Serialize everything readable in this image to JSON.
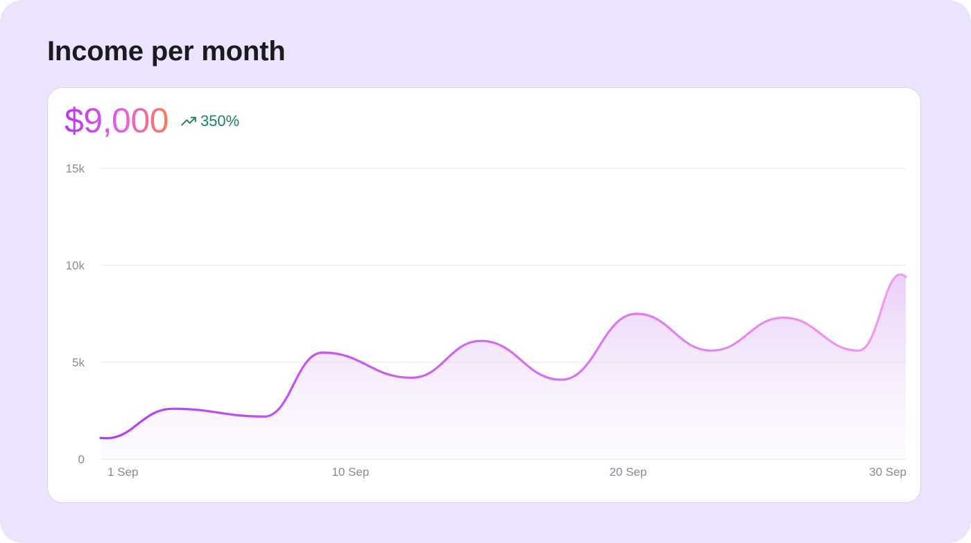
{
  "title": "Income per month",
  "summary": {
    "value": "$9,000",
    "change": "350%",
    "change_icon": "trending-up-icon"
  },
  "colors": {
    "background": "#ece4ff",
    "line_start": "#b43cf0",
    "line_end": "#f09cf0",
    "positive": "#18855a",
    "value_gradient": [
      "#b636f2",
      "#e65ee6",
      "#ff7b4f"
    ]
  },
  "chart_data": {
    "type": "area",
    "title": "",
    "xlabel": "",
    "ylabel": "",
    "x_ticks": [
      {
        "day": 1,
        "label": "1 Sep"
      },
      {
        "day": 10,
        "label": "10 Sep"
      },
      {
        "day": 20,
        "label": "20 Sep"
      },
      {
        "day": 30,
        "label": "30 Sep"
      }
    ],
    "y_ticks": [
      {
        "value": 0,
        "label": "0"
      },
      {
        "value": 5000,
        "label": "5k"
      },
      {
        "value": 10000,
        "label": "10k"
      },
      {
        "value": 15000,
        "label": "15k"
      }
    ],
    "xlim": [
      1,
      30
    ],
    "ylim": [
      0,
      15000
    ],
    "grid": true,
    "series": [
      {
        "x": [
          1,
          3.6,
          6.9,
          9.0,
          12.2,
          14.7,
          17.6,
          20.3,
          23.0,
          25.6,
          28.3,
          30
        ],
        "y": [
          1100,
          2600,
          2200,
          5500,
          4200,
          6100,
          4100,
          7500,
          5600,
          7300,
          5600,
          9400
        ]
      }
    ]
  }
}
